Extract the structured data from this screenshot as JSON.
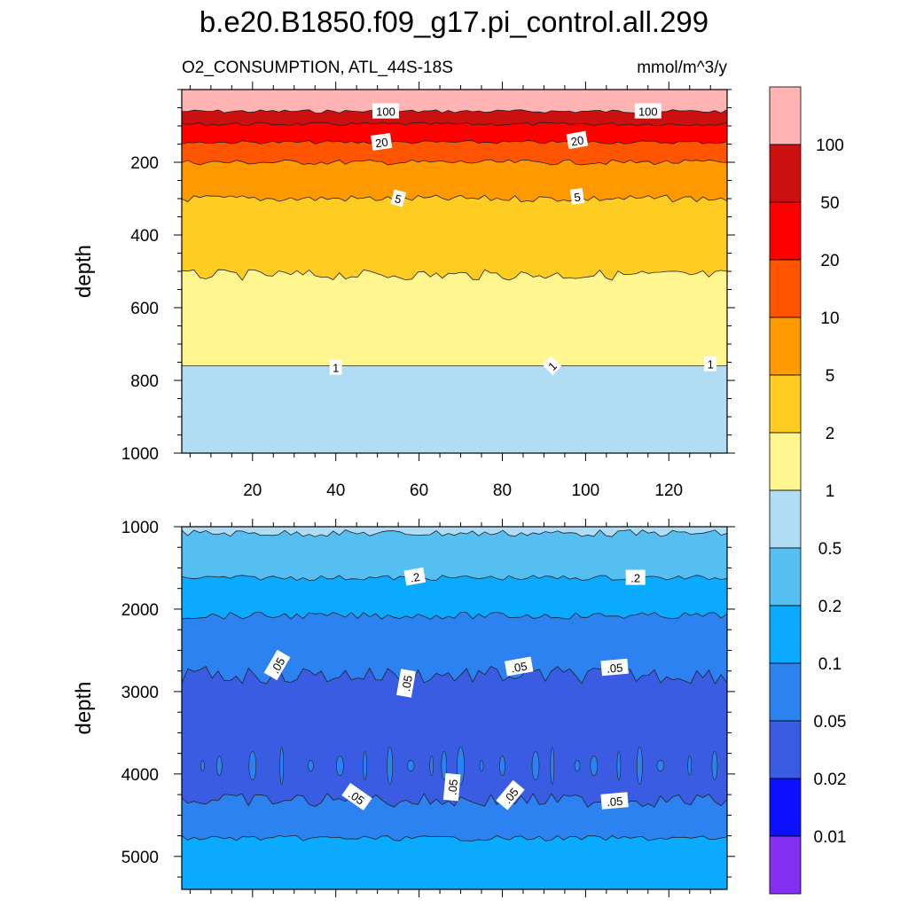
{
  "title": "b.e20.B1850.f09_g17.pi_control.all.299",
  "variable": "O2_CONSUMPTION, ATL_44S-18S",
  "units": "mmol/m^3/y",
  "chart_data": {
    "type": "heatmap",
    "x_range": [
      3,
      134
    ],
    "x_ticks": [
      20,
      40,
      60,
      80,
      100,
      120
    ],
    "x_tick_labels": [
      "20",
      "40",
      "60",
      "80",
      "100",
      "120"
    ],
    "colorbar": {
      "placement": "right",
      "levels": [
        "100",
        "50",
        "20",
        "10",
        "5",
        "2",
        "1",
        "0.5",
        "0.2",
        "0.1",
        "0.05",
        "0.02",
        "0.01"
      ],
      "colors": [
        "#ffb3b3",
        "#cc1010",
        "#ff0000",
        "#ff5500",
        "#ff9900",
        "#ffcc22",
        "#fff68f",
        "#b0dcf4",
        "#55bff2",
        "#0aaaff",
        "#2b82f0",
        "#3a5ce2",
        "#0c10ff",
        "#8430f0"
      ]
    },
    "panels": [
      {
        "ylabel": "depth",
        "ylim": [
          0,
          1000
        ],
        "y_ticks": [
          200,
          400,
          600,
          800,
          1000
        ],
        "y_tick_labels": [
          "200",
          "400",
          "600",
          "800",
          "1000"
        ],
        "bands": [
          {
            "top": 0,
            "bottom": 60,
            "color": "#ffb3b3"
          },
          {
            "top": 60,
            "bottom": 95,
            "color": "#cc1010"
          },
          {
            "top": 95,
            "bottom": 145,
            "color": "#ff0000"
          },
          {
            "top": 145,
            "bottom": 200,
            "color": "#ff5500"
          },
          {
            "top": 200,
            "bottom": 300,
            "color": "#ff9900"
          },
          {
            "top": 300,
            "bottom": 510,
            "color": "#ffcc22"
          },
          {
            "top": 510,
            "bottom": 760,
            "color": "#fff68f"
          },
          {
            "top": 760,
            "bottom": 1000,
            "color": "#b0dcf4"
          }
        ],
        "contour_labels": [
          {
            "text": "100",
            "x": 52,
            "y": 60,
            "angle": 0
          },
          {
            "text": "100",
            "x": 115,
            "y": 60,
            "angle": 0
          },
          {
            "text": "20",
            "x": 51,
            "y": 145,
            "angle": -8
          },
          {
            "text": "20",
            "x": 98,
            "y": 140,
            "angle": -10
          },
          {
            "text": "5",
            "x": 55,
            "y": 300,
            "angle": 15
          },
          {
            "text": "5",
            "x": 98,
            "y": 295,
            "angle": -8
          },
          {
            "text": "1",
            "x": 40,
            "y": 765,
            "angle": 0
          },
          {
            "text": "1",
            "x": 92,
            "y": 760,
            "angle": -45
          },
          {
            "text": "1",
            "x": 130,
            "y": 755,
            "angle": 0
          }
        ]
      },
      {
        "ylabel": "depth",
        "ylim": [
          1000,
          5400
        ],
        "y_ticks": [
          1000,
          2000,
          3000,
          4000,
          5000
        ],
        "y_tick_labels": [
          "1000",
          "2000",
          "3000",
          "4000",
          "5000"
        ],
        "bands": [
          {
            "top": 1000,
            "bottom": 1080,
            "color": "#b0dcf4"
          },
          {
            "top": 1080,
            "bottom": 1620,
            "color": "#55bff2"
          },
          {
            "top": 1620,
            "bottom": 2080,
            "color": "#0aaaff"
          },
          {
            "top": 2080,
            "bottom": 2800,
            "color": "#2b82f0"
          },
          {
            "top": 2800,
            "bottom": 4320,
            "color": "#3a5ce2"
          },
          {
            "top": 4320,
            "bottom": 4780,
            "color": "#2b82f0"
          },
          {
            "top": 4780,
            "bottom": 5400,
            "color": "#0aaaff"
          }
        ],
        "contour_labels": [
          {
            "text": ".2",
            "x": 59,
            "y": 1610,
            "angle": -10
          },
          {
            "text": ".2",
            "x": 112,
            "y": 1620,
            "angle": 0
          },
          {
            "text": ".05",
            "x": 26,
            "y": 2680,
            "angle": -60
          },
          {
            "text": ".05",
            "x": 57,
            "y": 2900,
            "angle": -80
          },
          {
            "text": ".05",
            "x": 84,
            "y": 2700,
            "angle": -10
          },
          {
            "text": ".05",
            "x": 107,
            "y": 2710,
            "angle": -5
          },
          {
            "text": ".05",
            "x": 45,
            "y": 4280,
            "angle": 35
          },
          {
            "text": ".05",
            "x": 68,
            "y": 4160,
            "angle": -85
          },
          {
            "text": ".05",
            "x": 82,
            "y": 4260,
            "angle": -50
          },
          {
            "text": ".05",
            "x": 107,
            "y": 4330,
            "angle": -5
          }
        ]
      }
    ]
  }
}
